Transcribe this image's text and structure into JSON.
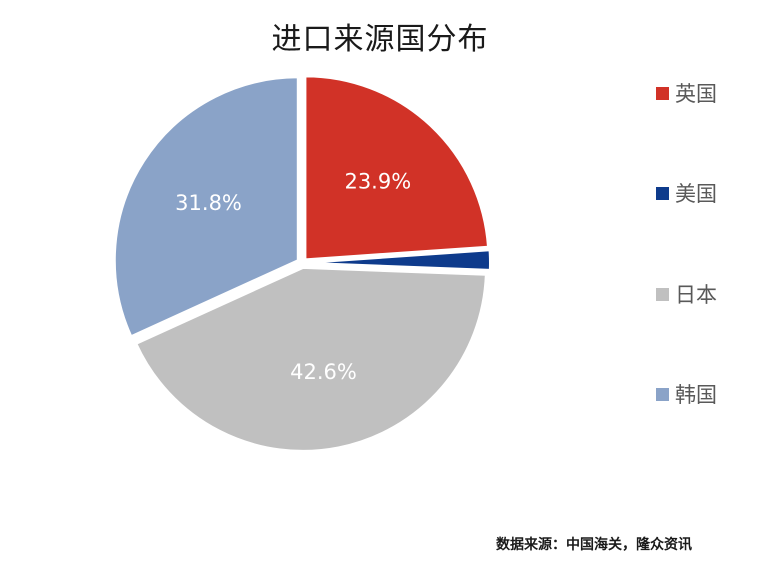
{
  "chart_data": {
    "type": "pie",
    "title": "进口来源国分布",
    "categories": [
      "英国",
      "美国",
      "日本",
      "韩国"
    ],
    "values": [
      23.9,
      1.7,
      42.6,
      31.8
    ],
    "data_labels": [
      "23.9%",
      "",
      "42.6%",
      "31.8%"
    ],
    "colors": [
      "#d13227",
      "#0e3b8c",
      "#c0c0c0",
      "#8aa3c8"
    ],
    "legend_position": "right",
    "exploded": true,
    "start_angle": "12 o'clock, clockwise"
  },
  "legend": [
    {
      "label": "英国",
      "color": "#d13227"
    },
    {
      "label": "美国",
      "color": "#0e3b8c"
    },
    {
      "label": "日本",
      "color": "#c0c0c0"
    },
    {
      "label": "韩国",
      "color": "#8aa3c8"
    }
  ],
  "source": "数据来源：中国海关，隆众资讯"
}
